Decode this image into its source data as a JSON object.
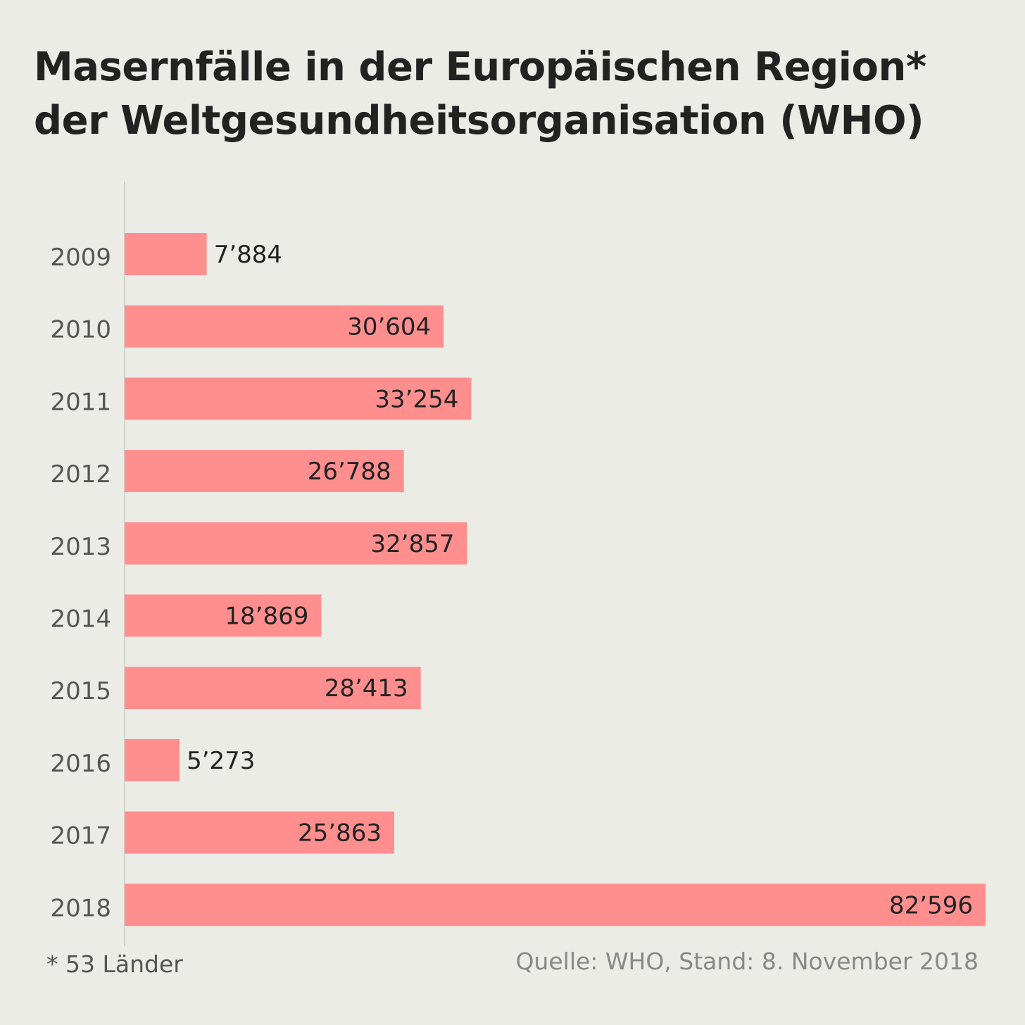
{
  "chart_data": {
    "type": "bar",
    "orientation": "horizontal",
    "title": [
      "Masernfälle in der Europäischen Region*",
      "der Weltgesundheitsorganisation (WHO)"
    ],
    "categories": [
      "2009",
      "2010",
      "2011",
      "2012",
      "2013",
      "2014",
      "2015",
      "2016",
      "2017",
      "2018"
    ],
    "values": [
      7884,
      30604,
      33254,
      26788,
      32857,
      18869,
      28413,
      5273,
      25863,
      82596
    ],
    "value_labels": [
      "7’884",
      "30’604",
      "33’254",
      "26’788",
      "32’857",
      "18’869",
      "28’413",
      "5’273",
      "25’863",
      "82’596"
    ],
    "xlim": [
      0,
      82596
    ],
    "grid": false,
    "bar_color": "#ff8f8f",
    "footnote": "* 53 Länder",
    "source": "Quelle: WHO,  Stand: 8. November 2018"
  }
}
